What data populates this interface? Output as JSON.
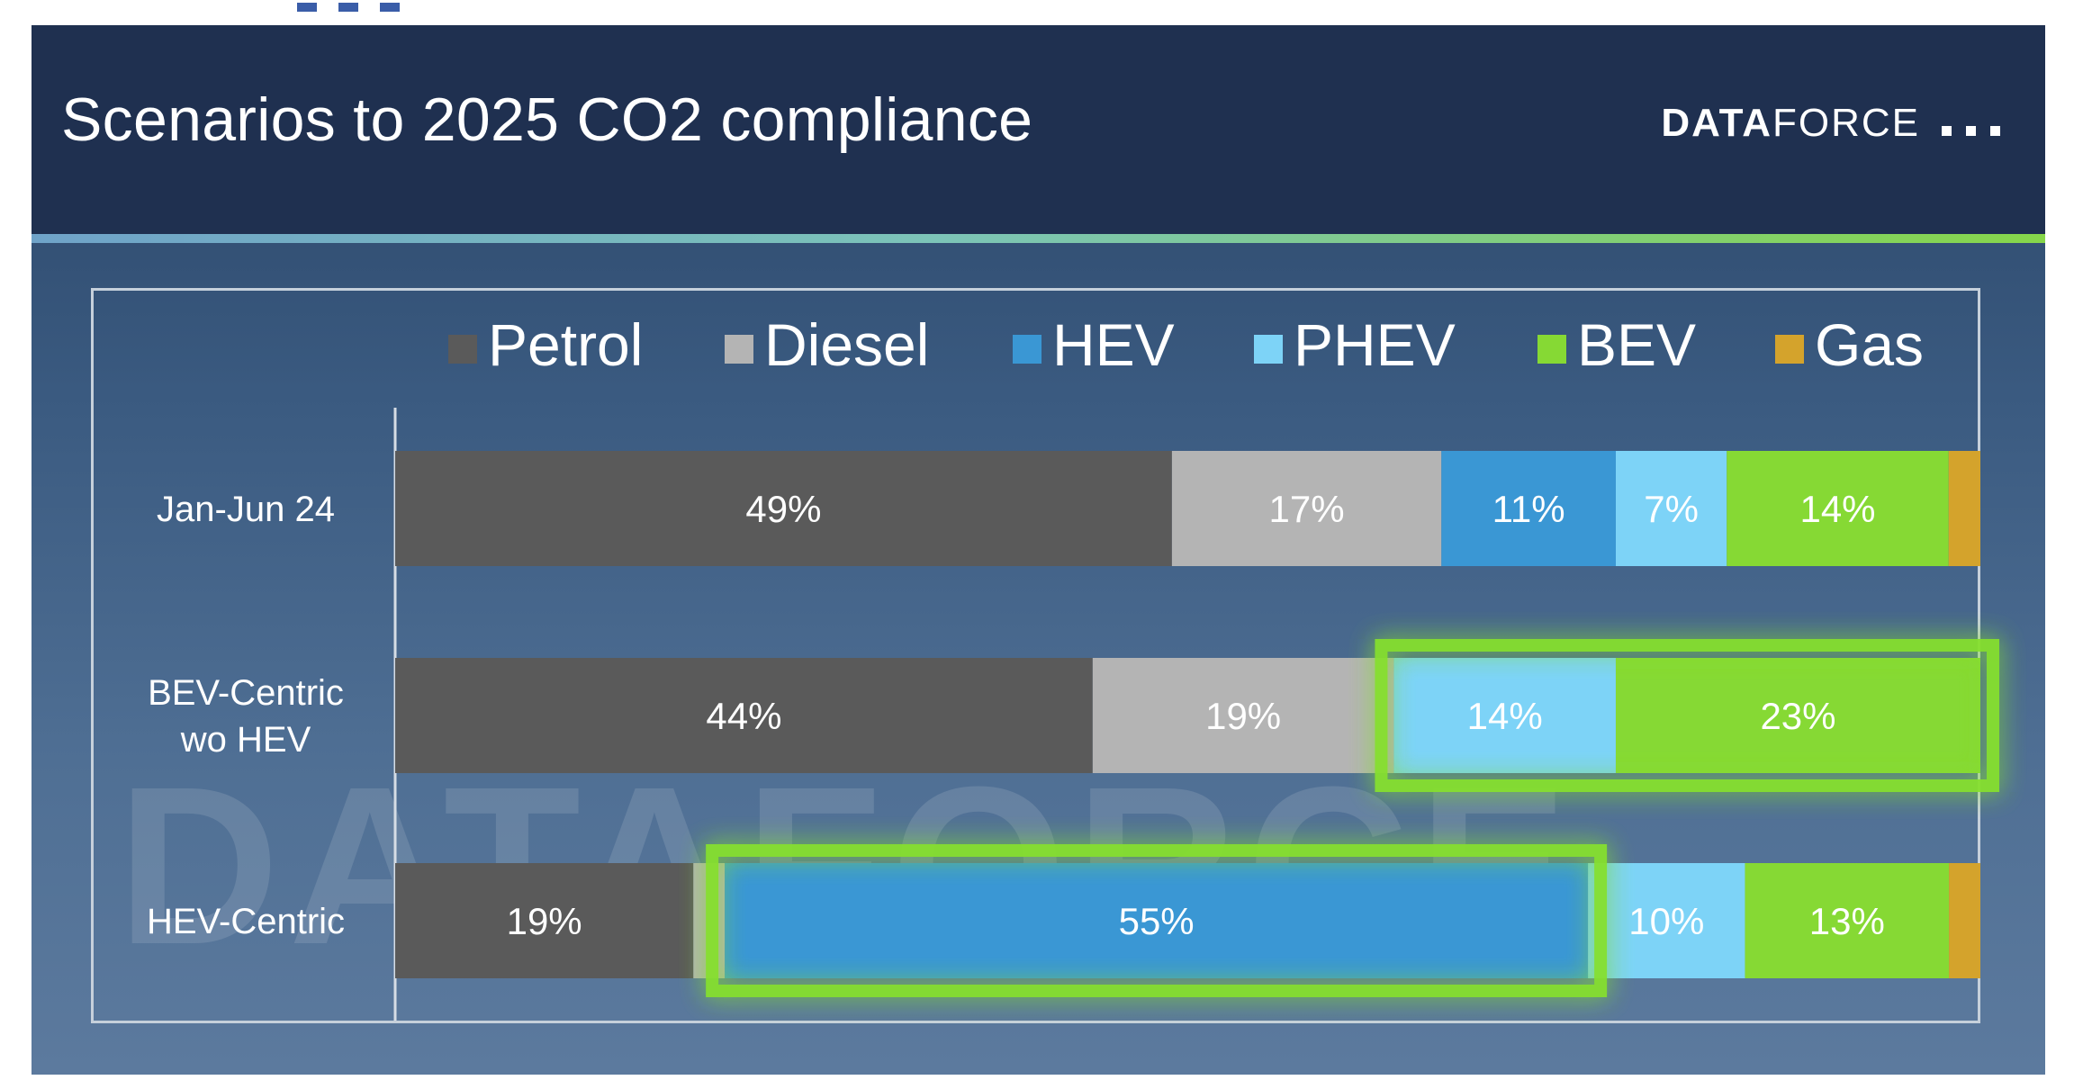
{
  "slide": {
    "title": "Scenarios to 2025 CO2 compliance",
    "logo_bold": "DATA",
    "logo_light": "FORCE",
    "watermark": "DATAFORCE"
  },
  "chart_data": {
    "type": "bar",
    "orientation": "horizontal",
    "stacked": true,
    "categories": [
      "Jan-Jun 24",
      "BEV-Centric wo HEV",
      "HEV-Centric"
    ],
    "category_lines": [
      [
        "Jan-Jun 24"
      ],
      [
        "BEV-Centric",
        "wo HEV"
      ],
      [
        "HEV-Centric"
      ]
    ],
    "xlim": [
      0,
      100
    ],
    "legend_position": "top",
    "series": [
      {
        "name": "Petrol",
        "color": "#5a5a5a",
        "values": [
          49,
          44,
          19
        ]
      },
      {
        "name": "Diesel",
        "color": "#b4b4b4",
        "values": [
          17,
          19,
          2
        ]
      },
      {
        "name": "HEV",
        "color": "#3a97d4",
        "values": [
          11,
          0,
          55
        ]
      },
      {
        "name": "PHEV",
        "color": "#7dd3f7",
        "values": [
          7,
          14,
          10
        ]
      },
      {
        "name": "BEV",
        "color": "#86d934",
        "values": [
          14,
          23,
          13
        ]
      },
      {
        "name": "Gas",
        "color": "#d4a32c",
        "values": [
          2,
          0,
          2
        ]
      }
    ],
    "data_labels": [
      [
        "49%",
        "17%",
        "11%",
        "7%",
        "14%",
        ""
      ],
      [
        "44%",
        "19%",
        "",
        "14%",
        "23%",
        ""
      ],
      [
        "19%",
        "",
        "55%",
        "10%",
        "13%",
        ""
      ]
    ],
    "highlights": [
      {
        "category": "BEV-Centric wo HEV",
        "series": [
          "PHEV",
          "BEV"
        ],
        "color": "#86e02f"
      },
      {
        "category": "HEV-Centric",
        "series": [
          "HEV"
        ],
        "color": "#86e02f"
      }
    ]
  }
}
